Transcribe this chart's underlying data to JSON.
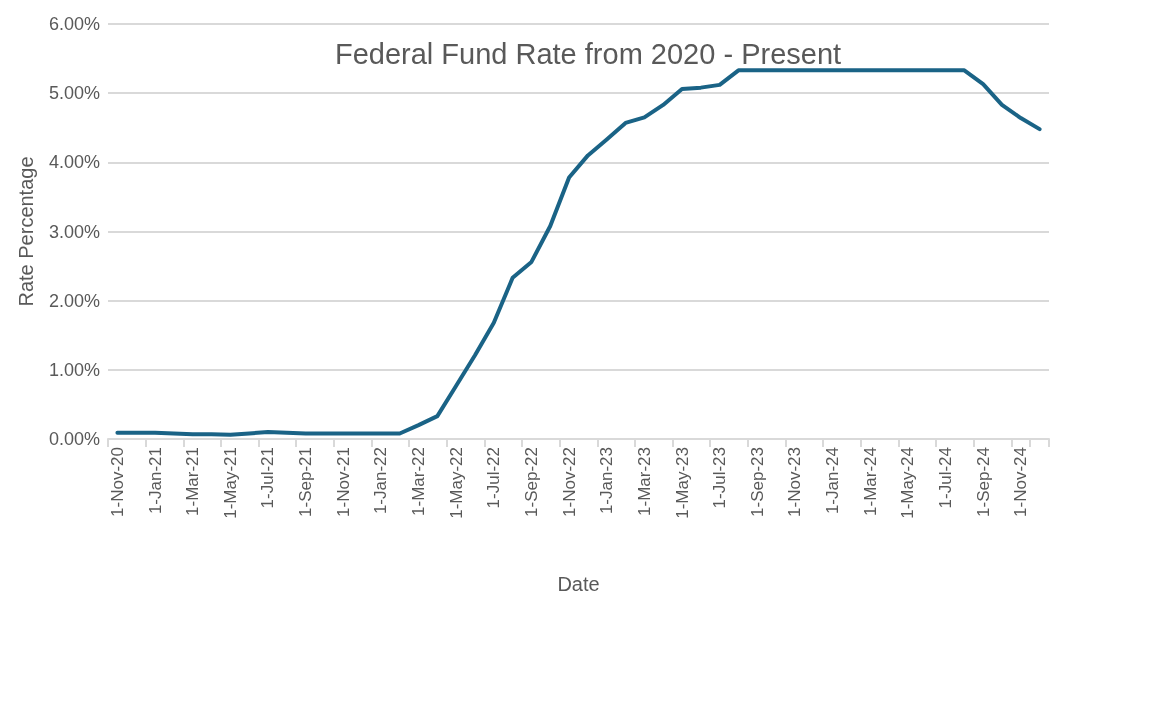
{
  "chart_data": {
    "type": "line",
    "title": "Federal Fund Rate from 2020 - Present",
    "xlabel": "Date",
    "ylabel": "Rate Percentage",
    "categories": [
      "1-Nov-20",
      null,
      "1-Jan-21",
      null,
      "1-Mar-21",
      null,
      "1-May-21",
      null,
      "1-Jul-21",
      null,
      "1-Sep-21",
      null,
      "1-Nov-21",
      null,
      "1-Jan-22",
      null,
      "1-Mar-22",
      null,
      "1-May-22",
      null,
      "1-Jul-22",
      null,
      "1-Sep-22",
      null,
      "1-Nov-22",
      null,
      "1-Jan-23",
      null,
      "1-Mar-23",
      null,
      "1-May-23",
      null,
      "1-Jul-23",
      null,
      "1-Sep-23",
      null,
      "1-Nov-23",
      null,
      "1-Jan-24",
      null,
      "1-Mar-24",
      null,
      "1-May-24",
      null,
      "1-Jul-24",
      null,
      "1-Sep-24",
      null,
      "1-Nov-24",
      null
    ],
    "series": [
      {
        "color": "#1a6386",
        "values": [
          0.09,
          0.09,
          0.09,
          0.08,
          0.07,
          0.07,
          0.06,
          0.08,
          0.1,
          0.09,
          0.08,
          0.08,
          0.08,
          0.08,
          0.08,
          0.08,
          0.2,
          0.33,
          0.77,
          1.21,
          1.68,
          2.33,
          2.56,
          3.08,
          3.78,
          4.1,
          4.33,
          4.57,
          4.65,
          4.83,
          5.06,
          5.08,
          5.12,
          5.33,
          5.33,
          5.33,
          5.33,
          5.33,
          5.33,
          5.33,
          5.33,
          5.33,
          5.33,
          5.33,
          5.33,
          5.33,
          5.13,
          4.83,
          4.64,
          4.48
        ]
      }
    ],
    "ylim": [
      0,
      6
    ],
    "yticks": [
      {
        "value": 0,
        "label": "0.00%"
      },
      {
        "value": 1,
        "label": "1.00%"
      },
      {
        "value": 2,
        "label": "2.00%"
      },
      {
        "value": 3,
        "label": "3.00%"
      },
      {
        "value": 4,
        "label": "4.00%"
      },
      {
        "value": 5,
        "label": "5.00%"
      },
      {
        "value": 6,
        "label": "6.00%"
      }
    ],
    "grid": "y",
    "marker": "none",
    "line_style": "solid"
  }
}
